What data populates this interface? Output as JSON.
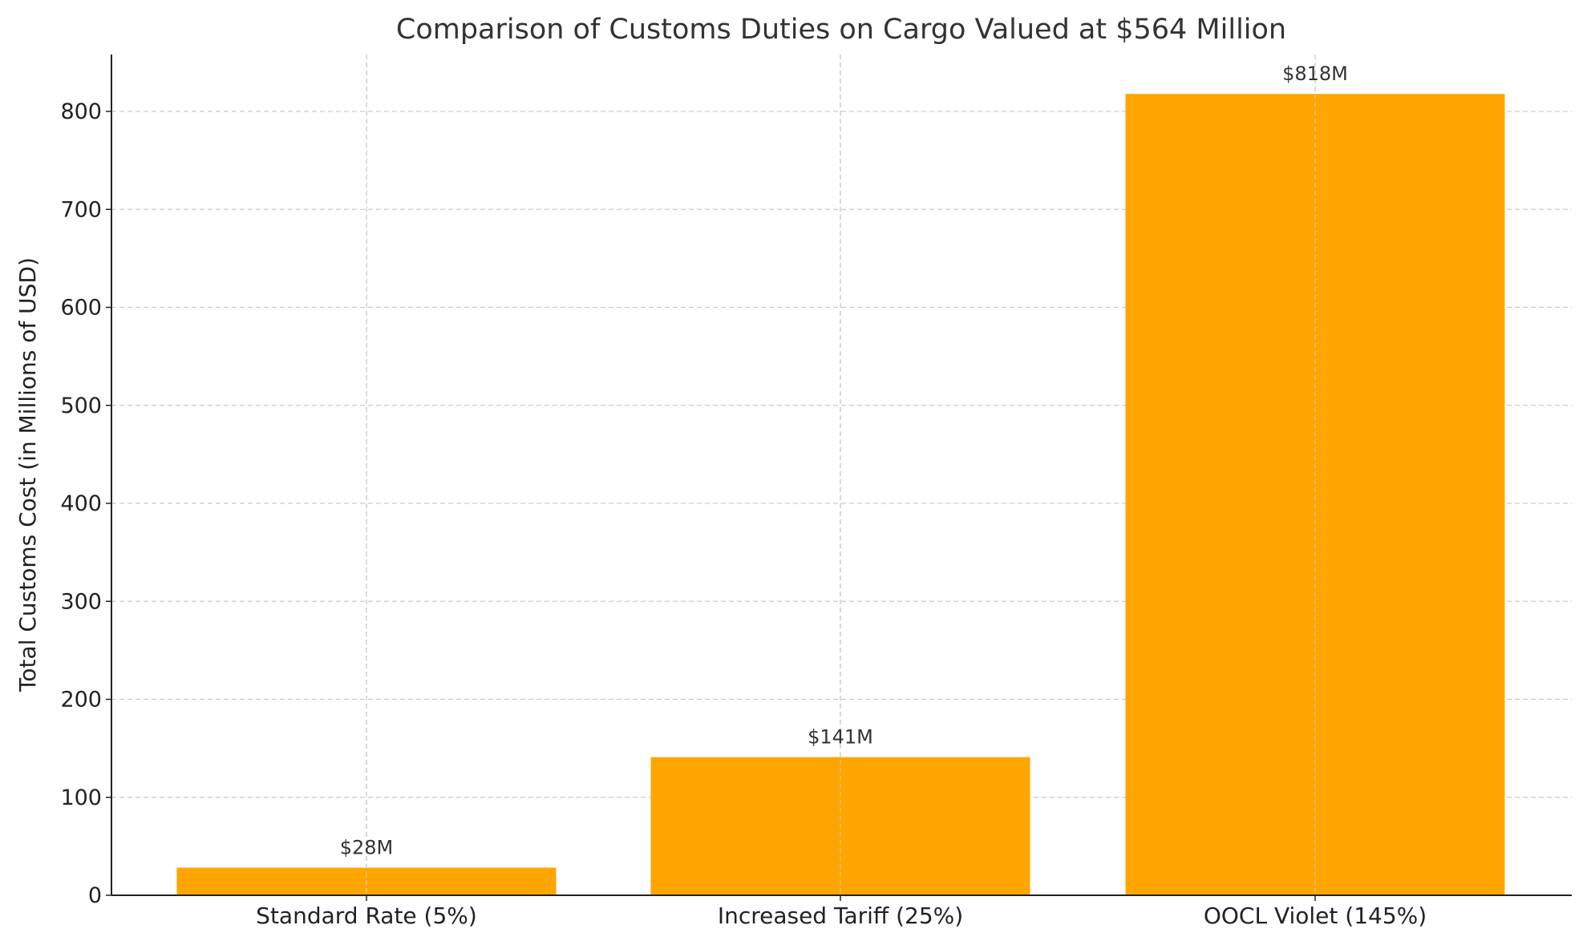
{
  "chart_data": {
    "type": "bar",
    "title": "Comparison of Customs Duties on Cargo Valued at $564 Million",
    "xlabel": "",
    "ylabel": "Total Customs Cost (in Millions of USD)",
    "categories": [
      "Standard Rate (5%)",
      "Increased Tariff (25%)",
      "OOCL Violet (145%)"
    ],
    "values": [
      28.2,
      141,
      817.8
    ],
    "data_labels": [
      "$28M",
      "$141M",
      "$818M"
    ],
    "ylim": [
      0,
      860
    ],
    "yticks": [
      0,
      100,
      200,
      300,
      400,
      500,
      600,
      700,
      800
    ],
    "grid": true,
    "bar_color": "#FFA500"
  }
}
